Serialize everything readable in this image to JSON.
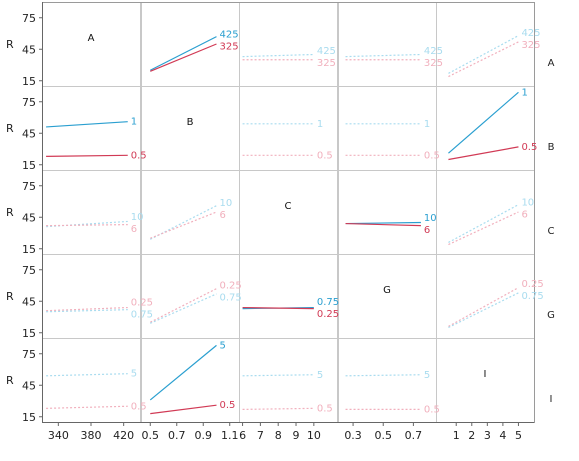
{
  "chart_data": {
    "type": "line",
    "title": "",
    "ylabel": "R",
    "ylim": [
      10,
      90
    ],
    "y_ticks": [
      "75",
      "45",
      "15"
    ],
    "y_tick_values": [
      75,
      45,
      15
    ],
    "factors": [
      "A",
      "B",
      "C",
      "G",
      "I"
    ],
    "x_axes": [
      {
        "factor": "A",
        "range": [
          320,
          440
        ],
        "ticks": [
          {
            "v": 340,
            "t": "340"
          },
          {
            "v": 380,
            "t": "380"
          },
          {
            "v": 420,
            "t": "420"
          }
        ]
      },
      {
        "factor": "B",
        "range": [
          0.43,
          1.17
        ],
        "ticks": [
          {
            "v": 0.5,
            "t": "0.5"
          },
          {
            "v": 0.7,
            "t": "0.7"
          },
          {
            "v": 0.9,
            "t": "0.9"
          },
          {
            "v": 1.1,
            "t": "1.1"
          }
        ]
      },
      {
        "factor": "C",
        "range": [
          5.8,
          11.3
        ],
        "ticks": [
          {
            "v": 6,
            "t": "6"
          },
          {
            "v": 7,
            "t": "7"
          },
          {
            "v": 8,
            "t": "8"
          },
          {
            "v": 9,
            "t": "9"
          },
          {
            "v": 10,
            "t": "10"
          }
        ]
      },
      {
        "factor": "G",
        "range": [
          0.2,
          0.85
        ],
        "ticks": [
          {
            "v": 0.3,
            "t": "0.3"
          },
          {
            "v": 0.5,
            "t": "0.5"
          },
          {
            "v": 0.7,
            "t": "0.7"
          }
        ]
      },
      {
        "factor": "I",
        "range": [
          -0.3,
          6.0
        ],
        "ticks": [
          {
            "v": 1,
            "t": "1"
          },
          {
            "v": 2,
            "t": "2"
          },
          {
            "v": 3,
            "t": "3"
          },
          {
            "v": 4,
            "t": "4"
          },
          {
            "v": 5,
            "t": "5"
          }
        ]
      }
    ],
    "colors": {
      "high": "#2a9fd0",
      "low": "#d13a55",
      "high_faint": "#a9dcef",
      "low_faint": "#f1b0bd"
    },
    "panels": [
      {
        "row": "A",
        "col": "B",
        "faded": false,
        "x": [
          0.5,
          1.0
        ],
        "series": [
          {
            "name": "425",
            "level": "high",
            "values": [
              25,
              57
            ]
          },
          {
            "name": "325",
            "level": "low",
            "values": [
              24,
              50
            ]
          }
        ]
      },
      {
        "row": "A",
        "col": "C",
        "faded": true,
        "x": [
          6,
          10
        ],
        "series": [
          {
            "name": "425",
            "level": "high",
            "values": [
              38,
              40
            ]
          },
          {
            "name": "325",
            "level": "low",
            "values": [
              35,
              35
            ]
          }
        ]
      },
      {
        "row": "A",
        "col": "G",
        "faded": true,
        "x": [
          0.25,
          0.75
        ],
        "series": [
          {
            "name": "425",
            "level": "high",
            "values": [
              38,
              40
            ]
          },
          {
            "name": "325",
            "level": "low",
            "values": [
              35,
              35
            ]
          }
        ]
      },
      {
        "row": "A",
        "col": "I",
        "faded": true,
        "x": [
          0.5,
          5
        ],
        "series": [
          {
            "name": "425",
            "level": "high",
            "values": [
              22,
              58
            ]
          },
          {
            "name": "325",
            "level": "low",
            "values": [
              19,
              52
            ]
          }
        ]
      },
      {
        "row": "B",
        "col": "A",
        "faded": false,
        "x": [
          325,
          425
        ],
        "series": [
          {
            "name": "1",
            "level": "high",
            "values": [
              51,
              56
            ]
          },
          {
            "name": "0.5",
            "level": "low",
            "values": [
              23,
              24
            ]
          }
        ]
      },
      {
        "row": "B",
        "col": "C",
        "faded": true,
        "x": [
          6,
          10
        ],
        "series": [
          {
            "name": "1",
            "level": "high",
            "values": [
              54,
              54
            ]
          },
          {
            "name": "0.5",
            "level": "low",
            "values": [
              24,
              24
            ]
          }
        ]
      },
      {
        "row": "B",
        "col": "G",
        "faded": true,
        "x": [
          0.25,
          0.75
        ],
        "series": [
          {
            "name": "1",
            "level": "high",
            "values": [
              54,
              54
            ]
          },
          {
            "name": "0.5",
            "level": "low",
            "values": [
              24,
              24
            ]
          }
        ]
      },
      {
        "row": "B",
        "col": "I",
        "faded": false,
        "x": [
          0.5,
          5
        ],
        "series": [
          {
            "name": "1",
            "level": "high",
            "values": [
              26,
              84
            ]
          },
          {
            "name": "0.5",
            "level": "low",
            "values": [
              20,
              32
            ]
          }
        ]
      },
      {
        "row": "C",
        "col": "A",
        "faded": true,
        "x": [
          325,
          425
        ],
        "series": [
          {
            "name": "10",
            "level": "high",
            "values": [
              36,
              41
            ]
          },
          {
            "name": "6",
            "level": "low",
            "values": [
              37,
              38
            ]
          }
        ]
      },
      {
        "row": "C",
        "col": "B",
        "faded": true,
        "x": [
          0.5,
          1.0
        ],
        "series": [
          {
            "name": "10",
            "level": "high",
            "values": [
              24,
              56
            ]
          },
          {
            "name": "6",
            "level": "low",
            "values": [
              25,
              50
            ]
          }
        ]
      },
      {
        "row": "C",
        "col": "G",
        "faded": false,
        "x": [
          0.25,
          0.75
        ],
        "series": [
          {
            "name": "10",
            "level": "high",
            "values": [
              39,
              40
            ]
          },
          {
            "name": "6",
            "level": "low",
            "values": [
              39,
              37
            ]
          }
        ]
      },
      {
        "row": "C",
        "col": "I",
        "faded": true,
        "x": [
          0.5,
          5
        ],
        "series": [
          {
            "name": "10",
            "level": "high",
            "values": [
              21,
              57
            ]
          },
          {
            "name": "6",
            "level": "low",
            "values": [
              19,
              50
            ]
          }
        ]
      },
      {
        "row": "G",
        "col": "A",
        "faded": true,
        "x": [
          325,
          425
        ],
        "series": [
          {
            "name": "0.25",
            "level": "low",
            "values": [
              36,
              39
            ]
          },
          {
            "name": "0.75",
            "level": "high",
            "values": [
              35,
              37
            ]
          }
        ]
      },
      {
        "row": "G",
        "col": "B",
        "faded": true,
        "x": [
          0.5,
          1.0
        ],
        "series": [
          {
            "name": "0.25",
            "level": "low",
            "values": [
              25,
              57
            ]
          },
          {
            "name": "0.75",
            "level": "high",
            "values": [
              24,
              52
            ]
          }
        ]
      },
      {
        "row": "G",
        "col": "C",
        "faded": false,
        "x": [
          6,
          10
        ],
        "series": [
          {
            "name": "0.75",
            "level": "high",
            "values": [
              38,
              39
            ]
          },
          {
            "name": "0.25",
            "level": "low",
            "values": [
              39,
              38
            ]
          }
        ]
      },
      {
        "row": "G",
        "col": "I",
        "faded": true,
        "x": [
          0.5,
          5
        ],
        "series": [
          {
            "name": "0.25",
            "level": "low",
            "values": [
              21,
              58
            ]
          },
          {
            "name": "0.75",
            "level": "high",
            "values": [
              20,
              53
            ]
          }
        ]
      },
      {
        "row": "I",
        "col": "A",
        "faded": true,
        "x": [
          325,
          425
        ],
        "series": [
          {
            "name": "5",
            "level": "high",
            "values": [
              54,
              56
            ]
          },
          {
            "name": "0.5",
            "level": "low",
            "values": [
              23,
              25
            ]
          }
        ]
      },
      {
        "row": "I",
        "col": "B",
        "faded": false,
        "x": [
          0.5,
          1.0
        ],
        "series": [
          {
            "name": "5",
            "level": "high",
            "values": [
              31,
              83
            ]
          },
          {
            "name": "0.5",
            "level": "low",
            "values": [
              18,
              26
            ]
          }
        ]
      },
      {
        "row": "I",
        "col": "C",
        "faded": true,
        "x": [
          6,
          10
        ],
        "series": [
          {
            "name": "5",
            "level": "high",
            "values": [
              54,
              55
            ]
          },
          {
            "name": "0.5",
            "level": "low",
            "values": [
              22,
              23
            ]
          }
        ]
      },
      {
        "row": "I",
        "col": "G",
        "faded": true,
        "x": [
          0.25,
          0.75
        ],
        "series": [
          {
            "name": "5",
            "level": "high",
            "values": [
              54,
              55
            ]
          },
          {
            "name": "0.5",
            "level": "low",
            "values": [
              22,
              22
            ]
          }
        ]
      }
    ]
  }
}
